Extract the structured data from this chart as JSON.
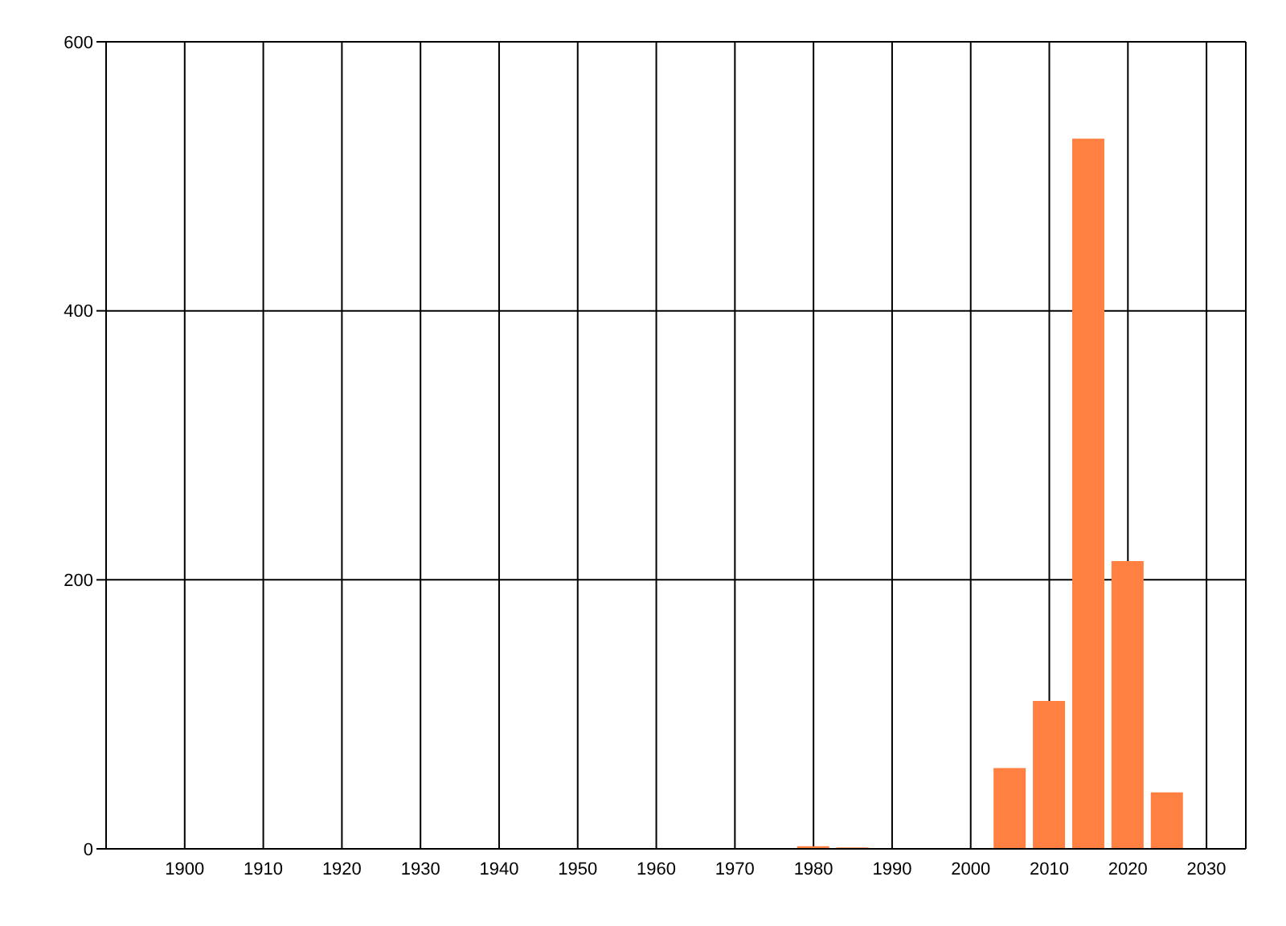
{
  "chart_data": {
    "type": "bar",
    "x": [
      1980,
      1985,
      2005,
      2010,
      2015,
      2020,
      2025
    ],
    "values": [
      2,
      1,
      60,
      110,
      528,
      214,
      42
    ],
    "color": "#ff8040",
    "xlim": [
      1890,
      2035
    ],
    "xticks": [
      1900,
      1910,
      1920,
      1930,
      1940,
      1950,
      1960,
      1970,
      1980,
      1990,
      2000,
      2010,
      2020,
      2030
    ],
    "ylim": [
      0,
      600
    ],
    "yticks": [
      0,
      200,
      400,
      600
    ],
    "grid": true
  }
}
